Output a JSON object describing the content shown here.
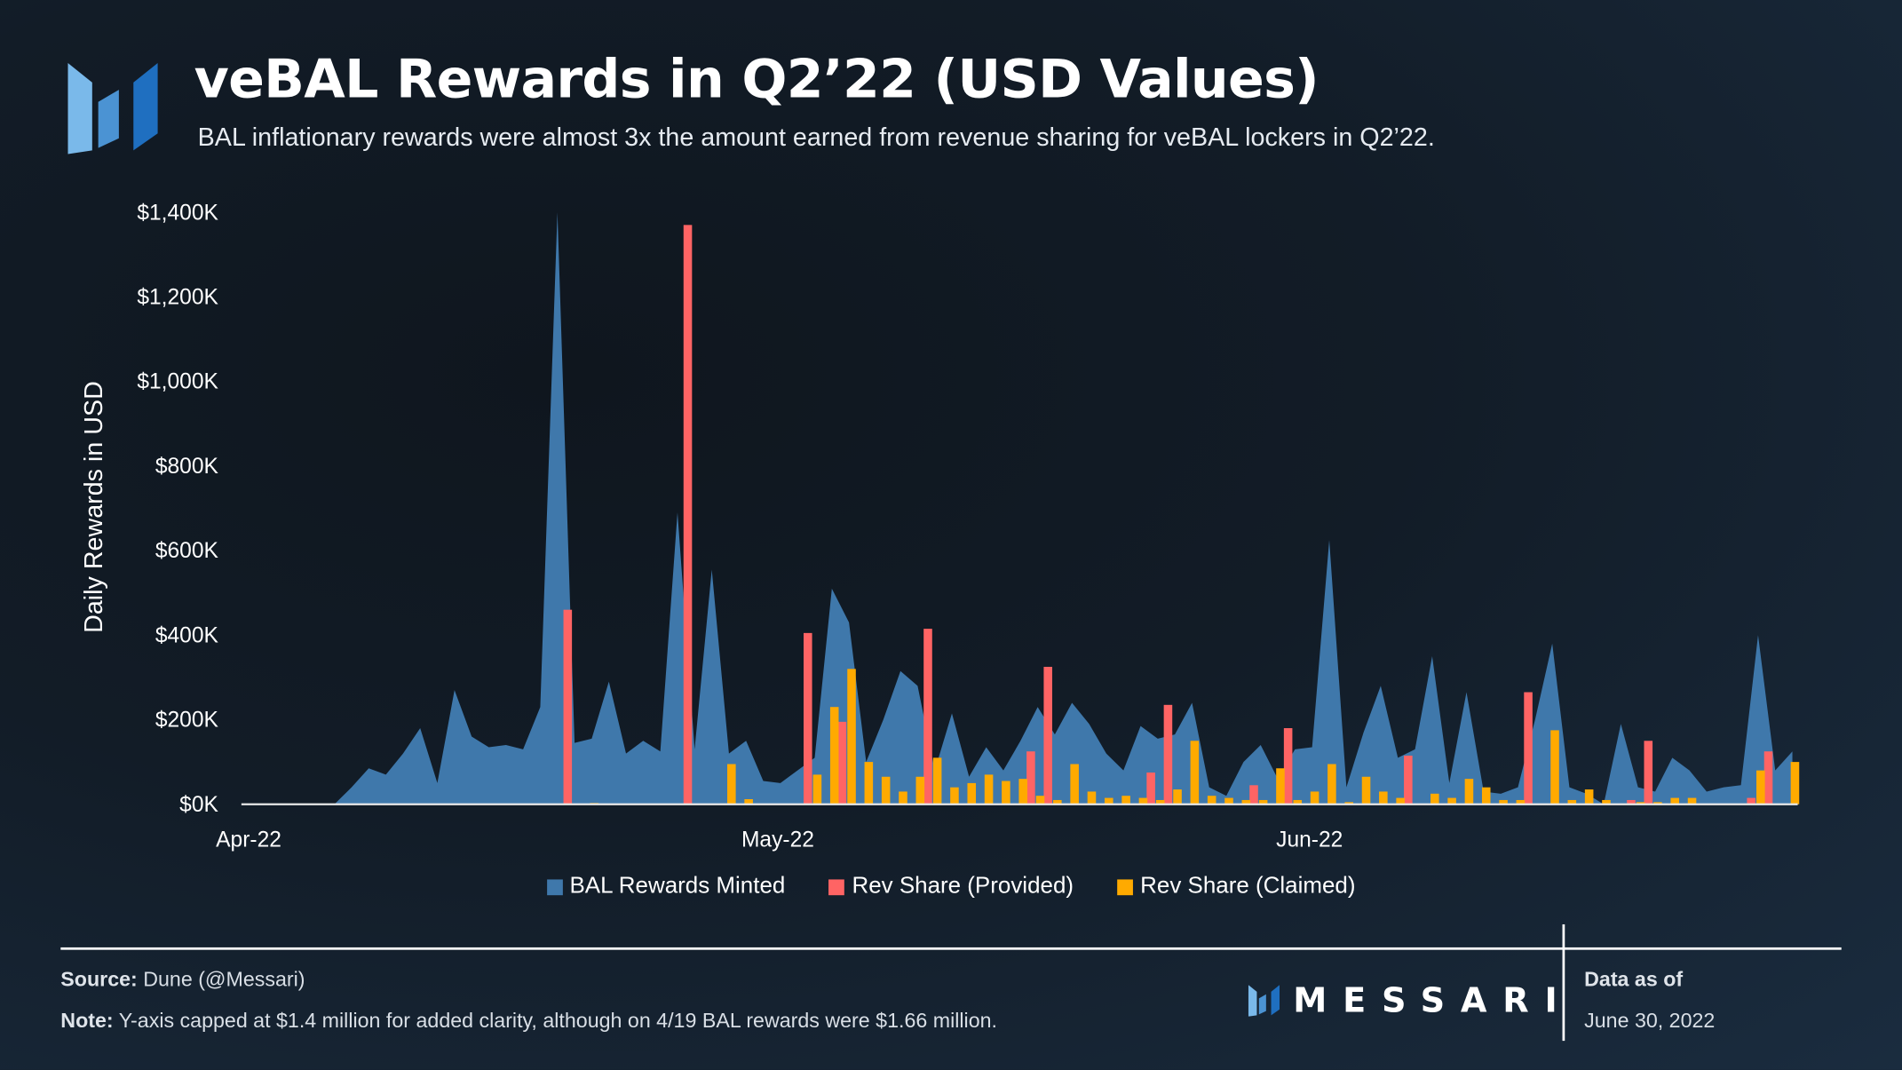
{
  "header": {
    "title": "veBAL Rewards in Q2’22 (USD Values)",
    "subtitle": "BAL inflationary rewards were almost 3x the amount earned from revenue sharing for veBAL lockers in Q2’22."
  },
  "footer": {
    "source_label": "Source:",
    "source_text": " Dune (@Messari)",
    "note_label": "Note:",
    "note_text": " Y-axis capped at $1.4 million for added clarity, although on 4/19 BAL rewards were $1.66 million.",
    "brand": "MESSARI",
    "data_as_of_label": "Data as of",
    "data_as_of_date": "June 30, 2022"
  },
  "colors": {
    "bal": "#3f78ab",
    "provided": "#ff6464",
    "claimed": "#ffaa00"
  },
  "chart_data": {
    "type": "area+bar",
    "title": "veBAL Rewards in Q2’22 (USD Values)",
    "ylabel": "Daily Rewards in USD",
    "xlabel": "",
    "ylim": [
      0,
      1400
    ],
    "yunit": "K USD",
    "yticks": [
      0,
      200,
      400,
      600,
      800,
      1000,
      1200,
      1400
    ],
    "ytick_labels": [
      "$0K",
      "$200K",
      "$400K",
      "$600K",
      "$800K",
      "$1,000K",
      "$1,200K",
      "$1,400K"
    ],
    "xticks": [
      {
        "date": "2022-04-01",
        "label": "Apr-22"
      },
      {
        "date": "2022-05-01",
        "label": "May-22"
      },
      {
        "date": "2022-06-01",
        "label": "Jun-22"
      }
    ],
    "grid": false,
    "legend_placement": "bottom",
    "x": [
      "2022-04-01",
      "2022-04-02",
      "2022-04-03",
      "2022-04-04",
      "2022-04-05",
      "2022-04-06",
      "2022-04-07",
      "2022-04-08",
      "2022-04-09",
      "2022-04-10",
      "2022-04-11",
      "2022-04-12",
      "2022-04-13",
      "2022-04-14",
      "2022-04-15",
      "2022-04-16",
      "2022-04-17",
      "2022-04-18",
      "2022-04-19",
      "2022-04-20",
      "2022-04-21",
      "2022-04-22",
      "2022-04-23",
      "2022-04-24",
      "2022-04-25",
      "2022-04-26",
      "2022-04-27",
      "2022-04-28",
      "2022-04-29",
      "2022-04-30",
      "2022-05-01",
      "2022-05-02",
      "2022-05-03",
      "2022-05-04",
      "2022-05-05",
      "2022-05-06",
      "2022-05-07",
      "2022-05-08",
      "2022-05-09",
      "2022-05-10",
      "2022-05-11",
      "2022-05-12",
      "2022-05-13",
      "2022-05-14",
      "2022-05-15",
      "2022-05-16",
      "2022-05-17",
      "2022-05-18",
      "2022-05-19",
      "2022-05-20",
      "2022-05-21",
      "2022-05-22",
      "2022-05-23",
      "2022-05-24",
      "2022-05-25",
      "2022-05-26",
      "2022-05-27",
      "2022-05-28",
      "2022-05-29",
      "2022-05-30",
      "2022-05-31",
      "2022-06-01",
      "2022-06-02",
      "2022-06-03",
      "2022-06-04",
      "2022-06-05",
      "2022-06-06",
      "2022-06-07",
      "2022-06-08",
      "2022-06-09",
      "2022-06-10",
      "2022-06-11",
      "2022-06-12",
      "2022-06-13",
      "2022-06-14",
      "2022-06-15",
      "2022-06-16",
      "2022-06-17",
      "2022-06-18",
      "2022-06-19",
      "2022-06-20",
      "2022-06-21",
      "2022-06-22",
      "2022-06-23",
      "2022-06-24",
      "2022-06-25",
      "2022-06-26",
      "2022-06-27",
      "2022-06-28",
      "2022-06-29",
      "2022-06-30"
    ],
    "series": [
      {
        "name": "BAL Rewards Minted",
        "type": "area",
        "values": [
          0,
          0,
          0,
          0,
          0,
          0,
          40,
          85,
          70,
          120,
          180,
          50,
          270,
          160,
          135,
          140,
          130,
          230,
          1660,
          145,
          155,
          290,
          120,
          150,
          125,
          690,
          130,
          555,
          120,
          150,
          55,
          50,
          80,
          110,
          510,
          430,
          100,
          200,
          315,
          280,
          80,
          215,
          65,
          135,
          80,
          150,
          230,
          165,
          240,
          190,
          120,
          80,
          185,
          155,
          165,
          240,
          40,
          20,
          100,
          140,
          60,
          130,
          135,
          625,
          40,
          170,
          280,
          110,
          130,
          350,
          50,
          265,
          30,
          25,
          40,
          200,
          380,
          40,
          25,
          0,
          190,
          40,
          30,
          110,
          80,
          30,
          40,
          45,
          400,
          80,
          125
        ]
      },
      {
        "name": "Rev Share (Provided)",
        "type": "bar",
        "values": [
          0,
          0,
          0,
          0,
          0,
          0,
          0,
          0,
          0,
          0,
          0,
          0,
          0,
          0,
          0,
          0,
          0,
          0,
          460,
          0,
          0,
          0,
          0,
          0,
          0,
          1370,
          0,
          0,
          0,
          0,
          0,
          0,
          405,
          0,
          195,
          0,
          0,
          0,
          0,
          415,
          0,
          0,
          0,
          0,
          0,
          125,
          325,
          0,
          0,
          0,
          0,
          0,
          75,
          235,
          0,
          0,
          0,
          0,
          45,
          0,
          180,
          0,
          0,
          0,
          0,
          0,
          0,
          115,
          0,
          0,
          0,
          0,
          0,
          0,
          265,
          0,
          0,
          0,
          0,
          0,
          10,
          150,
          0,
          0,
          0,
          0,
          0,
          15,
          125,
          0,
          0
        ]
      },
      {
        "name": "Rev Share (Claimed)",
        "type": "bar",
        "values": [
          0,
          0,
          0,
          0,
          0,
          0,
          0,
          0,
          0,
          0,
          0,
          0,
          0,
          0,
          0,
          0,
          0,
          0,
          0,
          0,
          3,
          0,
          0,
          0,
          0,
          0,
          0,
          0,
          95,
          12,
          0,
          0,
          0,
          70,
          230,
          320,
          100,
          65,
          30,
          65,
          110,
          40,
          50,
          70,
          55,
          60,
          20,
          10,
          95,
          30,
          15,
          20,
          15,
          10,
          35,
          150,
          20,
          15,
          10,
          10,
          85,
          10,
          30,
          95,
          5,
          65,
          30,
          15,
          0,
          25,
          15,
          60,
          40,
          10,
          10,
          0,
          175,
          10,
          35,
          10,
          0,
          5,
          5,
          15,
          15,
          0,
          0,
          0,
          80,
          0,
          100
        ]
      }
    ]
  }
}
